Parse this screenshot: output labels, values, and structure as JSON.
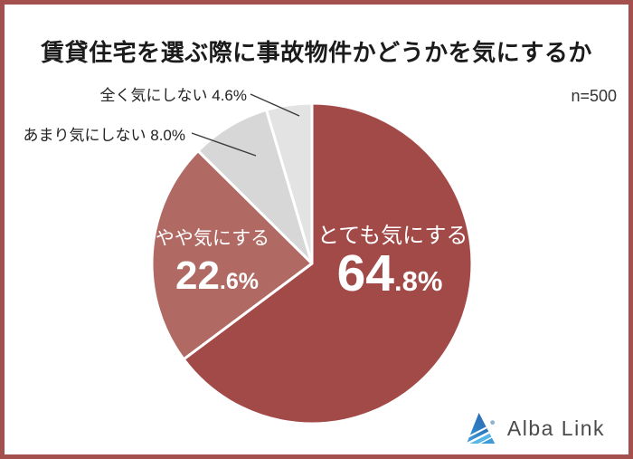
{
  "window": {
    "frame_color": "#A4504E",
    "background": "#FFFFFF"
  },
  "header": {
    "title": "賃貸住宅を選ぶ際に事故物件かどうかを気にするか",
    "sample_label": "n=500"
  },
  "chart_data": {
    "type": "pie",
    "title": "賃貸住宅を選ぶ際に事故物件かどうかを気にするか",
    "sample_size_label": "n=500",
    "start_angle_deg": 0,
    "direction": "clockwise",
    "legend_position": "none",
    "slices": [
      {
        "label": "とても気にする",
        "value": 64.8,
        "color": "#A24A48",
        "pct_int": "64",
        "pct_dec": ".8%",
        "label_placement": "inside"
      },
      {
        "label": "やや気にする",
        "value": 22.6,
        "color": "#B16A63",
        "pct_int": "22",
        "pct_dec": ".6%",
        "label_placement": "inside"
      },
      {
        "label": "あまり気にしない",
        "value": 8.0,
        "color": "#D7D7D7",
        "display": "あまり気にしない 8.0%",
        "label_placement": "outside"
      },
      {
        "label": "全く気にしない",
        "value": 4.6,
        "color": "#E3E3E3",
        "display": "全く気にしない 4.6%",
        "label_placement": "outside"
      }
    ]
  },
  "footer": {
    "logo_text": "Alba Link"
  }
}
